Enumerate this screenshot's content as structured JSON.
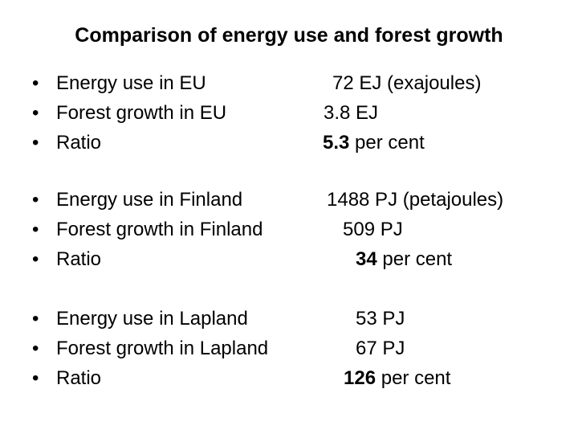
{
  "title": "Comparison of energy use and forest growth",
  "bullet": "•",
  "groups": [
    {
      "rows": [
        {
          "label": "Energy use in EU",
          "num": "72",
          "unit": " EJ (exajoules)",
          "bold": false
        },
        {
          "label": "Forest growth in EU",
          "num": "3.8",
          "unit": " EJ",
          "bold": false
        },
        {
          "label": "Ratio",
          "num": "5.3",
          "unit": " per cent",
          "bold": true
        }
      ]
    },
    {
      "rows": [
        {
          "label": "Energy use in Finland",
          "num": "1488",
          "unit": " PJ (petajoules)",
          "bold": false
        },
        {
          "label": "Forest growth in Finland",
          "num": "509",
          "unit": " PJ",
          "bold": false
        },
        {
          "label": "Ratio",
          "num": "34",
          "unit": " per cent",
          "bold": true
        }
      ]
    },
    {
      "rows": [
        {
          "label": "Energy use in Lapland",
          "num": "53",
          "unit": " PJ",
          "bold": false
        },
        {
          "label": "Forest growth in Lapland",
          "num": "67",
          "unit": " PJ",
          "bold": false
        },
        {
          "label": "Ratio",
          "num": "126",
          "unit": " per cent",
          "bold": true
        }
      ]
    }
  ]
}
